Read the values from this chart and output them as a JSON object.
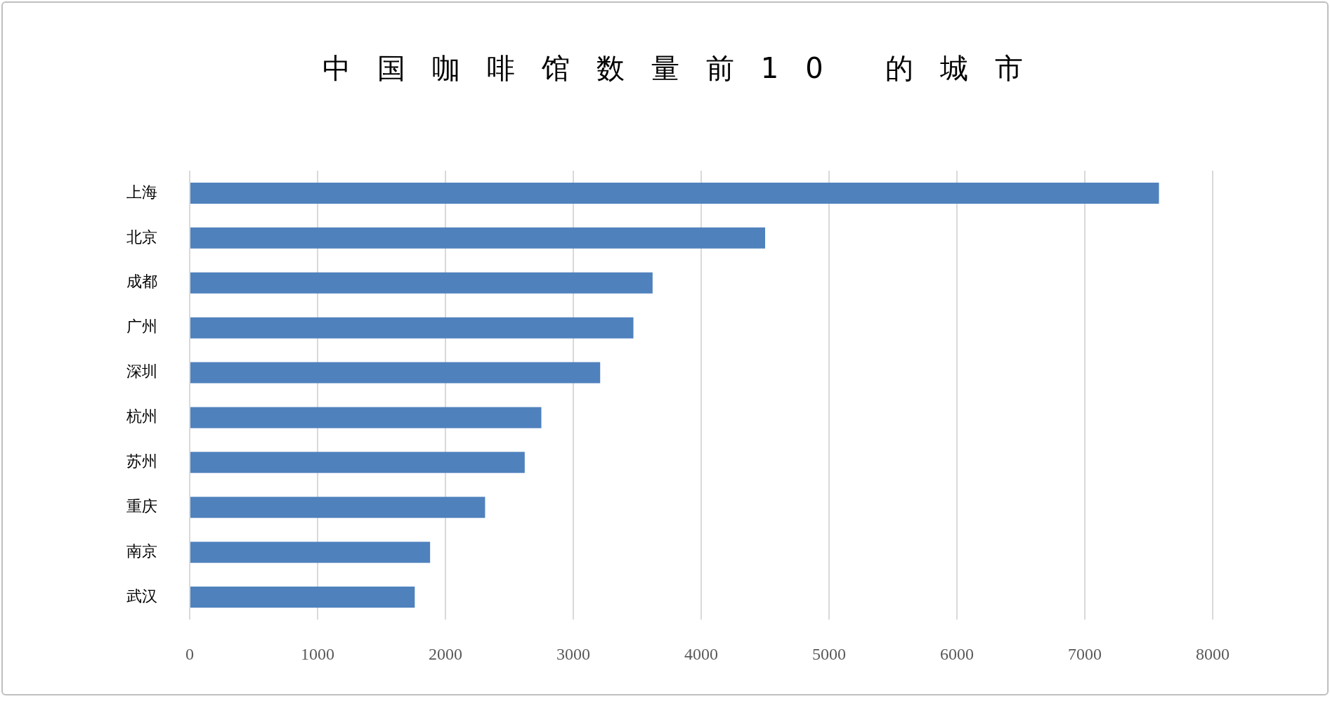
{
  "chart_data": {
    "type": "bar",
    "orientation": "horizontal",
    "title": "中国咖啡馆数量前10 的城市",
    "categories": [
      "上海",
      "北京",
      "成都",
      "广州",
      "深圳",
      "杭州",
      "苏州",
      "重庆",
      "南京",
      "武汉"
    ],
    "values": [
      7580,
      4500,
      3620,
      3470,
      3210,
      2750,
      2620,
      2310,
      1880,
      1760
    ],
    "color": "#4f81bd",
    "xlim": [
      0,
      8000
    ],
    "xticks": [
      0,
      1000,
      2000,
      3000,
      4000,
      5000,
      6000,
      7000,
      8000
    ],
    "grid": "x"
  }
}
